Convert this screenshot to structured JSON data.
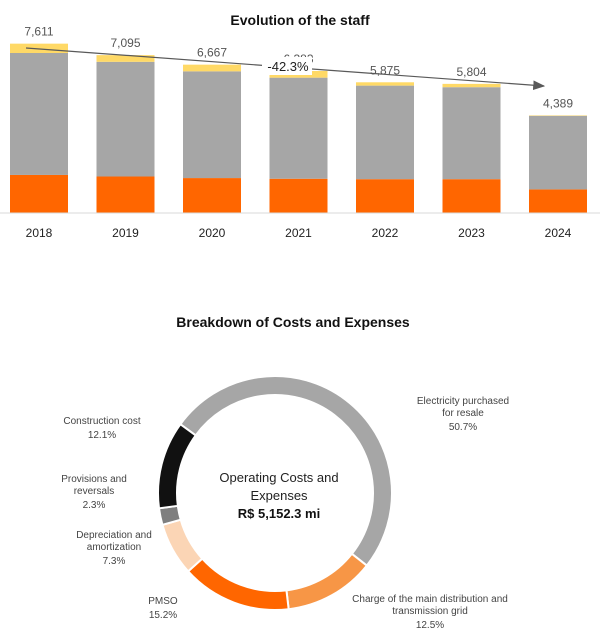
{
  "colors": {
    "orange": "#ff6600",
    "gray": "#a6a6a6",
    "yellow": "#ffd966",
    "black": "#111111",
    "darkgray": "#7f7f7f",
    "peach": "#fbd5b5",
    "lightorange": "#f79646",
    "arrow": "#595959"
  },
  "chart_data": [
    {
      "type": "bar",
      "stacked": true,
      "title": "Evolution of the staff",
      "categories": [
        "2018",
        "2019",
        "2020",
        "2021",
        "2022",
        "2023",
        "2024"
      ],
      "totals": [
        "7,611",
        "7,095",
        "6,667",
        "6,383",
        "5,875",
        "5,804",
        "4,389"
      ],
      "total_values": [
        7611,
        7095,
        6667,
        6383,
        5875,
        5804,
        4389
      ],
      "series": [
        {
          "name": "segment-bottom",
          "values": [
            1710,
            1640,
            1570,
            1540,
            1520,
            1520,
            1060
          ]
        },
        {
          "name": "segment-middle",
          "values": [
            5481,
            5155,
            4797,
            4543,
            4205,
            4134,
            3309
          ]
        },
        {
          "name": "segment-top",
          "values": [
            420,
            300,
            300,
            300,
            150,
            150,
            20
          ]
        }
      ],
      "trend_label": "-42.3%",
      "ylim": [
        0,
        8000
      ]
    },
    {
      "type": "pie",
      "donut": true,
      "title": "Breakdown of Costs and Expenses",
      "center_line1": "Operating Costs and",
      "center_line2": "Expenses",
      "center_value": "R$ 5,152.3 mi",
      "slices": [
        {
          "label_lines": [
            "Electricity purchased",
            "for resale"
          ],
          "pct_label": "50.7%",
          "value": 50.7
        },
        {
          "label_lines": [
            "Charge of the main distribution and",
            "transmission grid"
          ],
          "pct_label": "12.5%",
          "value": 12.5
        },
        {
          "label_lines": [
            "PMSO"
          ],
          "pct_label": "15.2%",
          "value": 15.2
        },
        {
          "label_lines": [
            "Depreciation and",
            "amortization"
          ],
          "pct_label": "7.3%",
          "value": 7.3
        },
        {
          "label_lines": [
            "Provisions and",
            "reversals"
          ],
          "pct_label": "2.3%",
          "value": 2.3
        },
        {
          "label_lines": [
            "Construction cost"
          ],
          "pct_label": "12.1%",
          "value": 12.1
        }
      ]
    }
  ]
}
